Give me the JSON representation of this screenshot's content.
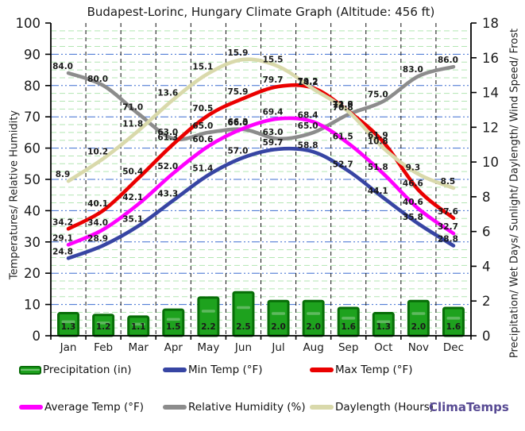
{
  "title": "Budapest-Lorinc, Hungary Climate Graph (Altitude: 456 ft)",
  "branding": "ClimaTemps",
  "branding_color": "#574a93",
  "left_axis": {
    "label": "Temperatures/ Relative Humidity",
    "min": 0,
    "max": 100,
    "ticks": [
      0,
      10,
      20,
      30,
      40,
      50,
      60,
      70,
      80,
      90,
      100
    ]
  },
  "right_axis": {
    "label": "Precipitation/ Wet Days/ Sunlight/ Daylength/ Wind Speed/ Frost",
    "min": 0,
    "max": 18,
    "ticks": [
      0,
      2,
      4,
      6,
      8,
      10,
      12,
      14,
      16,
      18
    ]
  },
  "chart_data": {
    "type": "combo-bar-line",
    "categories": [
      "Jan",
      "Feb",
      "Mar",
      "Apr",
      "May",
      "Jun",
      "Jul",
      "Aug",
      "Sep",
      "Oct",
      "Nov",
      "Dec"
    ],
    "grid": {
      "h_major_color": "#3f6fd1",
      "h_minor_color": "#b3e6b3",
      "v_color": "#111111"
    },
    "series": [
      {
        "name": "Precipitation (in)",
        "type": "bar",
        "axis": "right",
        "color": "#1ea21e",
        "border": "#076d07",
        "values": [
          1.3,
          1.2,
          1.1,
          1.5,
          2.2,
          2.5,
          2.0,
          2.0,
          1.6,
          1.3,
          2.0,
          1.6
        ]
      },
      {
        "name": "Relative Humidity (%)",
        "type": "line",
        "axis": "left",
        "color": "#8c8c8c",
        "z": 1,
        "values": [
          84.0,
          80.0,
          71.0,
          63.0,
          65.0,
          66.0,
          63.0,
          65.0,
          70.8,
          75.0,
          83.0,
          86.0
        ]
      },
      {
        "name": "Max Temp (°F)",
        "type": "line",
        "axis": "left",
        "color": "#ea0000",
        "z": 2,
        "values": [
          34.2,
          40.1,
          50.4,
          61.3,
          70.5,
          75.9,
          79.7,
          79.2,
          71.8,
          61.9,
          46.6,
          37.6
        ]
      },
      {
        "name": "Average Temp (°F)",
        "type": "line",
        "axis": "left",
        "color": "#ff00ff",
        "z": 3,
        "values": [
          29.1,
          34.0,
          42.1,
          52.0,
          60.6,
          66.3,
          69.4,
          68.4,
          61.5,
          51.8,
          40.6,
          32.7
        ]
      },
      {
        "name": "Min Temp (°F)",
        "type": "line",
        "axis": "left",
        "color": "#3745a3",
        "z": 4,
        "values": [
          24.8,
          28.9,
          35.1,
          43.3,
          51.4,
          57.0,
          59.7,
          58.8,
          52.7,
          44.1,
          35.8,
          28.8
        ]
      },
      {
        "name": "Daylength (Hours)",
        "type": "line",
        "axis": "right",
        "color": "#d9d9ab",
        "z": 5,
        "values": [
          8.9,
          10.2,
          11.8,
          13.6,
          15.1,
          15.9,
          15.5,
          14.2,
          12.9,
          10.8,
          9.3,
          8.5
        ]
      }
    ],
    "legend_position": "bottom"
  },
  "legend": {
    "row1": [
      "Precipitation (in)",
      "Min Temp (°F)",
      "Max Temp (°F)"
    ],
    "row2": [
      "Average Temp (°F)",
      "Relative Humidity (%)",
      "Daylength (Hours)"
    ]
  }
}
